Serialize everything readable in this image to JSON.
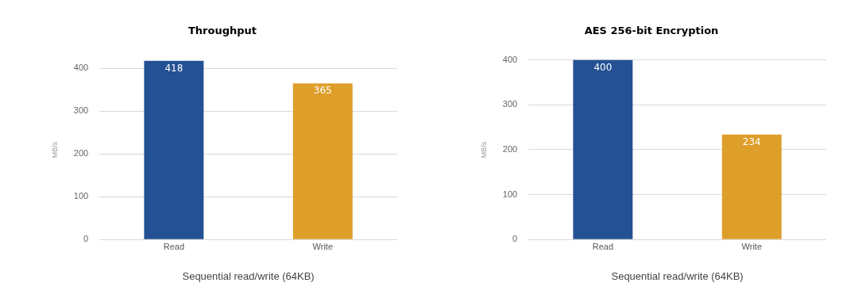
{
  "chart_data": [
    {
      "type": "bar",
      "title": "Throughput",
      "xlabel": "Sequential read/write (64KB)",
      "ylabel": "MB/s",
      "categories": [
        "Read",
        "Write"
      ],
      "values": [
        418,
        365
      ],
      "colors": [
        "#245094",
        "#de9e2a"
      ],
      "ylim": [
        0,
        420
      ],
      "yticks": [
        0,
        100,
        200,
        300,
        400
      ],
      "grid": "y",
      "data_labels": true
    },
    {
      "type": "bar",
      "title": "AES 256-bit Encryption",
      "xlabel": "Sequential read/write (64KB)",
      "ylabel": "MB/s",
      "categories": [
        "Read",
        "Write"
      ],
      "values": [
        400,
        234
      ],
      "colors": [
        "#245094",
        "#de9e2a"
      ],
      "ylim": [
        0,
        400
      ],
      "yticks": [
        0,
        100,
        200,
        300,
        400
      ],
      "grid": "y",
      "data_labels": true
    }
  ]
}
